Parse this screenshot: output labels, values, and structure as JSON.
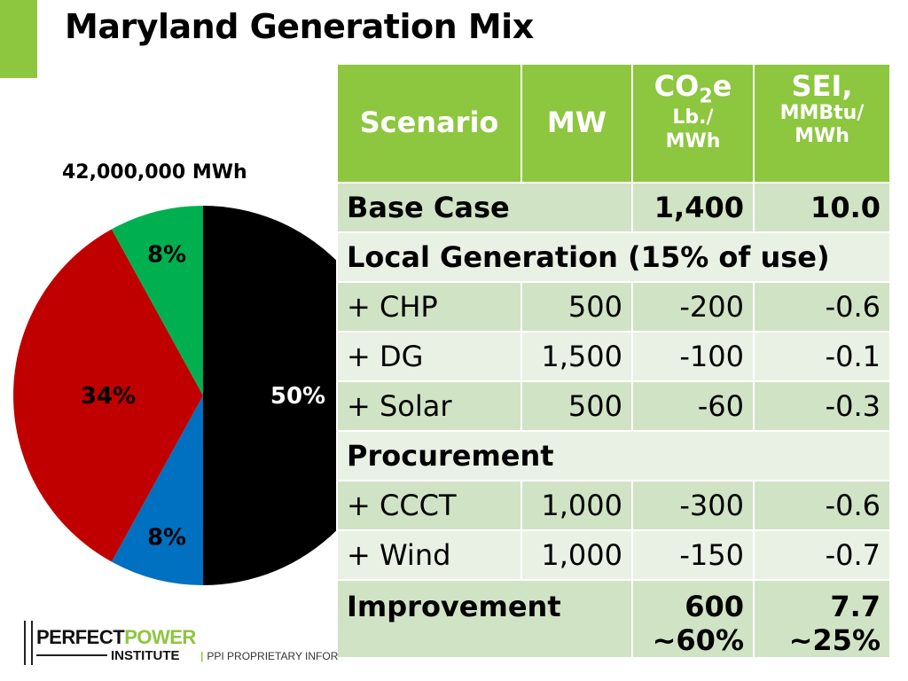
{
  "slide": {
    "title": "Maryland Generation Mix",
    "total_label": "42,000,000 MWh",
    "footer_sep": "|",
    "footer_text": "PPI PROPRIETARY INFOR"
  },
  "logo": {
    "line1_a": "PERFECT",
    "line1_b": "POWER",
    "line2": "INSTITUTE"
  },
  "colors": {
    "accent_green": "#8dc63f",
    "header_green": "#8dc63f",
    "row_dark": "#d1e3c5",
    "row_light": "#e9f1e4"
  },
  "chart_data": {
    "type": "pie",
    "title": "",
    "slices": [
      {
        "label": "50%",
        "value": 50,
        "color": "#000000",
        "label_color": "#ffffff"
      },
      {
        "label": "8%",
        "value": 8,
        "color": "#0070c0",
        "label_color": "#000000"
      },
      {
        "label": "34%",
        "value": 34,
        "color": "#c00000",
        "label_color": "#000000"
      },
      {
        "label": "8%",
        "value": 8,
        "color": "#00b050",
        "label_color": "#000000"
      }
    ]
  },
  "table": {
    "headers": {
      "scenario": "Scenario",
      "mw": "MW",
      "co2_a": "CO",
      "co2_sub": "2",
      "co2_b": "e",
      "co2_unit1": "Lb./",
      "co2_unit2": "MWh",
      "sei": "SEI,",
      "sei_unit1": "MMBtu/",
      "sei_unit2": "MWh"
    },
    "base_case": {
      "label": "Base Case",
      "co2": "1,400",
      "sei": "10.0"
    },
    "local_header": "Local Generation (15% of use)",
    "local_rows": [
      {
        "label": "+ CHP",
        "mw": "500",
        "co2": "-200",
        "sei": "-0.6"
      },
      {
        "label": "+ DG",
        "mw": "1,500",
        "co2": "-100",
        "sei": "-0.1"
      },
      {
        "label": "+ Solar",
        "mw": "500",
        "co2": "-60",
        "sei": "-0.3"
      }
    ],
    "procurement_header": "Procurement",
    "procurement_rows": [
      {
        "label": "+ CCCT",
        "mw": "1,000",
        "co2": "-300",
        "sei": "-0.6"
      },
      {
        "label": "+ Wind",
        "mw": "1,000",
        "co2": "-150",
        "sei": "-0.7"
      }
    ],
    "improvement": {
      "label": "Improvement",
      "co2_value": "600",
      "co2_pct": "~60%",
      "sei_value": "7.7",
      "sei_pct": "~25%"
    }
  }
}
